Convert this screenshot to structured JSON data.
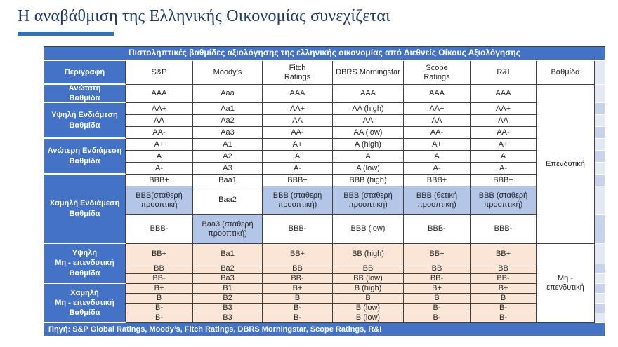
{
  "page": {
    "title": "Η αναβάθμιση της Ελληνικής Οικονομίας συνεχίζεται"
  },
  "colors": {
    "blue": "#4472C4",
    "highlight": "#B4C6E7",
    "peach": "#FBE5D6",
    "strip_light": "#E4E9F4",
    "strip_dark": "#C8D2EA",
    "border": "#404040",
    "text": "#262626",
    "title": "#1F3864",
    "underline": "#2E74B5"
  },
  "table": {
    "banner": "Πιστοληπτικές βαθμίδες αξιολόγησης της ελληνικής οικονομίας από Διεθνείς Οίκους Αξιολόγησης",
    "columns": [
      "Περιγραφή",
      "S&P",
      "Moody’s",
      "Fitch\nRatings",
      "DBRS Morningstar",
      "Scope\nRatings",
      "R&I",
      "Βαθμίδα"
    ],
    "groups": [
      {
        "label": "Ανώτατη\nΒαθμίδα",
        "span": 1
      },
      {
        "label": "Υψηλή Ενδιάμεση\nΒαθμίδα",
        "span": 3
      },
      {
        "label": "Ανώτερη Ενδιάμεση\nΒαθμίδα",
        "span": 3
      },
      {
        "label": "Χαμηλή Ενδιάμεση\nΒαθμίδα",
        "span": 3
      },
      {
        "label": "Υψηλή\nΜη - επενδυτική\nΒαθμίδα",
        "span": 3
      },
      {
        "label": "Χαμηλή\nΜη - επενδυτική\nΒαθμίδα",
        "span": 4
      }
    ],
    "rows": [
      {
        "cells": [
          "AAA",
          "Aaa",
          "AAA",
          "AAA",
          "AAA",
          "AAA"
        ],
        "hl": []
      },
      {
        "cells": [
          "AA+",
          "Aa1",
          "AA+",
          "AA (high)",
          "AA+",
          "AA+"
        ],
        "hl": []
      },
      {
        "cells": [
          "AA",
          "Aa2",
          "AA",
          "AA",
          "AA",
          "AA"
        ],
        "hl": []
      },
      {
        "cells": [
          "AA-",
          "Aa3",
          "AA-",
          "AA (low)",
          "AA-",
          "AA-"
        ],
        "hl": []
      },
      {
        "cells": [
          "A+",
          "A1",
          "A+",
          "A (high)",
          "A+",
          "A+"
        ],
        "hl": []
      },
      {
        "cells": [
          "A",
          "A2",
          "A",
          "A",
          "A",
          "A"
        ],
        "hl": []
      },
      {
        "cells": [
          "A-",
          "A3",
          "A-",
          "A (low)",
          "A-",
          "A-"
        ],
        "hl": []
      },
      {
        "cells": [
          "BBB+",
          "Baa1",
          "BBB+",
          "BBB (high)",
          "BBB+",
          "BBB+"
        ],
        "hl": []
      },
      {
        "cells": [
          "BBB(σταθερή προοπτική",
          "Baa2",
          "BBB (σταθερή προοπτική)",
          "BBB (σταθερή προοπτική)",
          "BBB (θετική προοπτική)",
          "BBB (σταθερή προοπτική)"
        ],
        "hl": [
          0,
          2,
          3,
          4,
          5
        ]
      },
      {
        "cells": [
          "BBB-",
          "Baa3 (σταθερή προοπτική)",
          "BBB-",
          "BBB (low)",
          "BBB-",
          "BBB-"
        ],
        "hl": [
          1
        ]
      },
      {
        "cells": [
          "BB+",
          "Ba1",
          "BB+",
          "BB (high)",
          "BB+",
          "BB+"
        ],
        "hl": []
      },
      {
        "cells": [
          "BB",
          "Ba2",
          "BB",
          "BB",
          "BB",
          "BB"
        ],
        "hl": []
      },
      {
        "cells": [
          "BB-",
          "Ba3",
          "BB-",
          "BB (low)",
          "BB-",
          "BB-"
        ],
        "hl": []
      },
      {
        "cells": [
          "B+",
          "B1",
          "B+",
          "B (high)",
          "B+",
          "B+"
        ],
        "hl": []
      },
      {
        "cells": [
          "B",
          "B2",
          "B",
          "B",
          "B",
          "B"
        ],
        "hl": []
      },
      {
        "cells": [
          "B-",
          "B3",
          "B-",
          "B (low)",
          "B-",
          "B-"
        ],
        "hl": []
      },
      {
        "cells": [
          "B-",
          "B3",
          "B-",
          "B (low)",
          "B-",
          "B-"
        ],
        "hl": []
      }
    ],
    "non_investment_from_row": 10,
    "grade": [
      {
        "label": "Επενδυτική",
        "span": 10
      },
      {
        "label": "Μη - επενδυτική",
        "span": 7
      }
    ],
    "footer": "Πηγή: S&P Global Ratings, Moody’s, Fitch Ratings, DBRS Morningstar, Scope Ratings, R&I"
  }
}
